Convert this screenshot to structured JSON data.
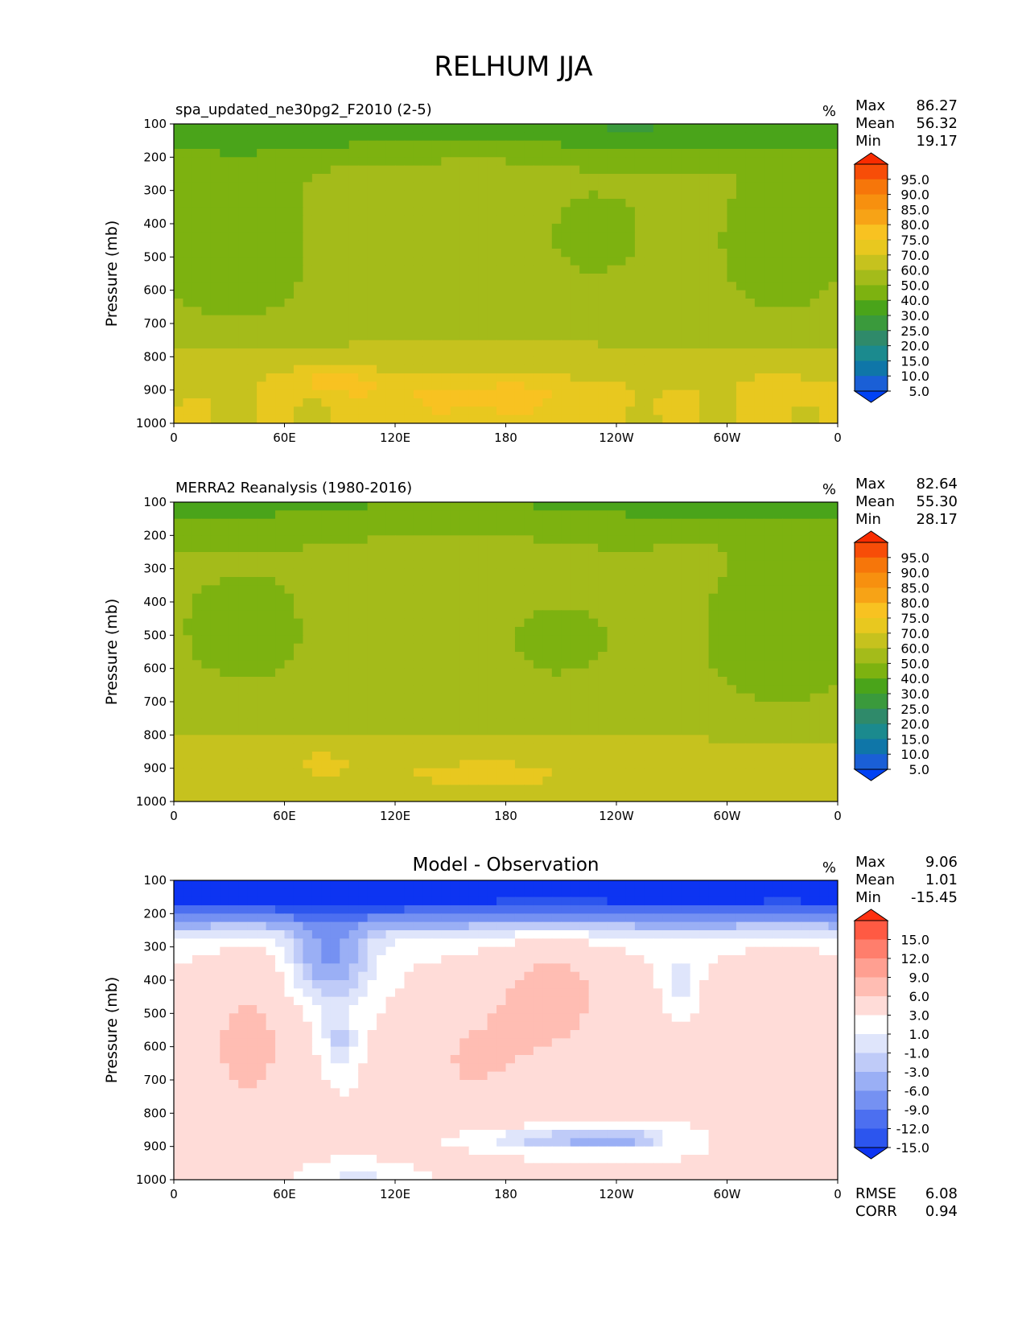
{
  "title": "RELHUM JJA",
  "chart_data": [
    {
      "type": "heatmap",
      "title": "spa_updated_ne30pg2_F2010 (2-5)",
      "units": "%",
      "xlabel": "",
      "ylabel": "Pressure (mb)",
      "x_ticks": [
        "0",
        "60E",
        "120E",
        "180",
        "120W",
        "60W",
        "0"
      ],
      "y_ticks": [
        "100",
        "200",
        "300",
        "400",
        "500",
        "600",
        "700",
        "800",
        "900",
        "1000"
      ],
      "ylim": [
        1000,
        100
      ],
      "stats": {
        "max_label": "Max",
        "max": "86.27",
        "mean_label": "Mean",
        "mean": "56.32",
        "min_label": "Min",
        "min": "19.17"
      },
      "levels": [
        "95.0",
        "90.0",
        "85.0",
        "80.0",
        "75.0",
        "70.0",
        "60.0",
        "50.0",
        "40.0",
        "30.0",
        "25.0",
        "20.0",
        "15.0",
        "10.0",
        "5.0"
      ],
      "colors": [
        "#0042f4",
        "#1a5fd6",
        "#0f76a8",
        "#1b8a8e",
        "#2f8a6a",
        "#3a9a3c",
        "#4aa41a",
        "#7db210",
        "#a4bb1a",
        "#c6c21e",
        "#e8c81f",
        "#f8c221",
        "#f7a316",
        "#f7900f",
        "#f6760a",
        "#f74d08",
        "#f92c00"
      ],
      "field": "model"
    },
    {
      "type": "heatmap",
      "title": "MERRA2 Reanalysis (1980-2016)",
      "units": "%",
      "xlabel": "",
      "ylabel": "Pressure (mb)",
      "x_ticks": [
        "0",
        "60E",
        "120E",
        "180",
        "120W",
        "60W",
        "0"
      ],
      "y_ticks": [
        "100",
        "200",
        "300",
        "400",
        "500",
        "600",
        "700",
        "800",
        "900",
        "1000"
      ],
      "ylim": [
        1000,
        100
      ],
      "stats": {
        "max_label": "Max",
        "max": "82.64",
        "mean_label": "Mean",
        "mean": "55.30",
        "min_label": "Min",
        "min": "28.17"
      },
      "levels": [
        "95.0",
        "90.0",
        "85.0",
        "80.0",
        "75.0",
        "70.0",
        "60.0",
        "50.0",
        "40.0",
        "30.0",
        "25.0",
        "20.0",
        "15.0",
        "10.0",
        "5.0"
      ],
      "colors": [
        "#0042f4",
        "#1a5fd6",
        "#0f76a8",
        "#1b8a8e",
        "#2f8a6a",
        "#3a9a3c",
        "#4aa41a",
        "#7db210",
        "#a4bb1a",
        "#c6c21e",
        "#e8c81f",
        "#f8c221",
        "#f7a316",
        "#f7900f",
        "#f6760a",
        "#f74d08",
        "#f92c00"
      ],
      "field": "obs"
    },
    {
      "type": "heatmap",
      "title": "Model - Observation",
      "units": "%",
      "xlabel": "",
      "ylabel": "Pressure (mb)",
      "x_ticks": [
        "0",
        "60E",
        "120E",
        "180",
        "120W",
        "60W",
        "0"
      ],
      "y_ticks": [
        "100",
        "200",
        "300",
        "400",
        "500",
        "600",
        "700",
        "800",
        "900",
        "1000"
      ],
      "ylim": [
        1000,
        100
      ],
      "stats": {
        "max_label": "Max",
        "max": "9.06",
        "mean_label": "Mean",
        "mean": "1.01",
        "min_label": "Min",
        "min": "-15.45"
      },
      "levels": [
        "15.0",
        "12.0",
        "9.0",
        "6.0",
        "3.0",
        "1.0",
        "-1.0",
        "-3.0",
        "-6.0",
        "-9.0",
        "-12.0",
        "-15.0"
      ],
      "colors": [
        "#0d34f2",
        "#2c55ee",
        "#4c6ff0",
        "#7591f2",
        "#9aaff5",
        "#bfcbf8",
        "#dfe5fb",
        "#ffffff",
        "#ffdcd8",
        "#ffbdb3",
        "#ff9f91",
        "#ff7e6c",
        "#ff5a43",
        "#ff3010"
      ],
      "field": "diff",
      "rmse_label": "RMSE",
      "rmse": "6.08",
      "corr_label": "CORR",
      "corr": "0.94"
    }
  ]
}
